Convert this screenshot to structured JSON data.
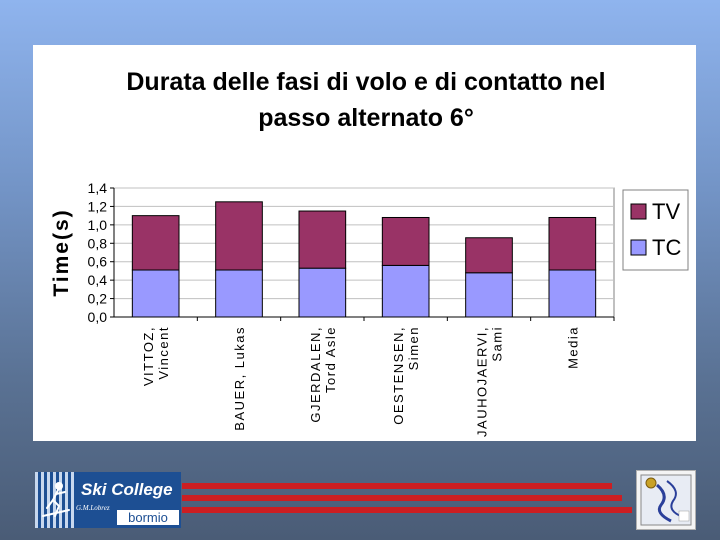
{
  "chart_data": {
    "type": "bar",
    "stacked": true,
    "title": "Durata delle fasi di volo e di contatto nel passo alternato 6°",
    "title_lines": [
      "Durata delle fasi di volo e di contatto nel",
      "passo alternato 6°"
    ],
    "xlabel": "",
    "ylabel": "Time(s)",
    "ylim": [
      0,
      1.4
    ],
    "yticks": [
      "1,4",
      "1,2",
      "1,0",
      "0,8",
      "0,6",
      "0,4",
      "0,2",
      "0,0"
    ],
    "ytick_values": [
      1.4,
      1.2,
      1.0,
      0.8,
      0.6,
      0.4,
      0.2,
      0.0
    ],
    "grid": true,
    "legend_position": "right",
    "categories": [
      [
        "VITTOZ,",
        "Vincent"
      ],
      [
        "BAUER, Lukas"
      ],
      [
        "GJERDALEN,",
        "Tord Asle"
      ],
      [
        "OESTENSEN,",
        "Simen"
      ],
      [
        "JAUHOJAERVI,",
        "Sami"
      ],
      [
        "Media"
      ]
    ],
    "series": [
      {
        "name": "TC",
        "color": "#9999ff",
        "values": [
          0.51,
          0.51,
          0.53,
          0.56,
          0.48,
          0.51
        ]
      },
      {
        "name": "TV",
        "color": "#993366",
        "values": [
          0.59,
          0.74,
          0.62,
          0.52,
          0.38,
          0.57
        ]
      }
    ],
    "legend_order": [
      "TV",
      "TC"
    ],
    "plot_background": "#ffffff",
    "gridline_color": "#c0c0c0"
  },
  "footer": {
    "logo_left": {
      "brand": "Ski College",
      "sub": "G.M.Lobrez",
      "place": "bormio",
      "icon": "skier-icon",
      "color": "#1d4f93"
    },
    "logo_right": {
      "icon": "academy-seal-icon"
    },
    "rail_color": "#cc1e22"
  }
}
